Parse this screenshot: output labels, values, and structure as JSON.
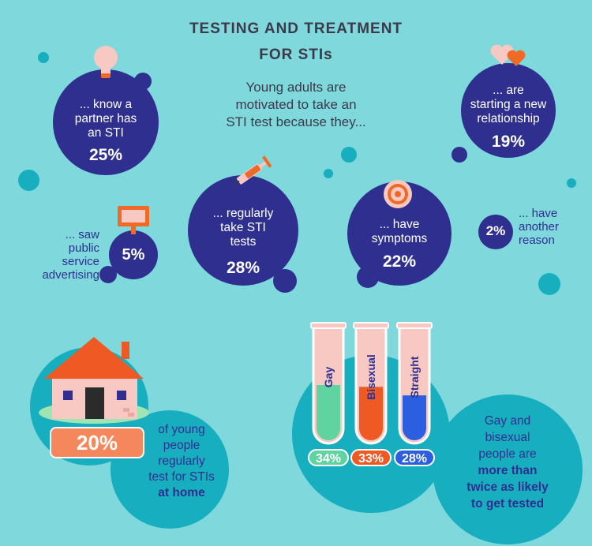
{
  "title": {
    "line1": "TESTING AND TREATMENT",
    "line2": "FOR STIs"
  },
  "intro": {
    "line1": "Young adults are",
    "line2": "motivated to take an",
    "line3": "STI test because they..."
  },
  "reasons": [
    {
      "line1": "... know a",
      "line2": "partner has",
      "line3": "an STI",
      "pct": "25%"
    },
    {
      "line1": "... are",
      "line2": "starting a new",
      "line3": "relationship",
      "pct": "19%"
    },
    {
      "line1": "... regularly",
      "line2": "take STI",
      "line3": "tests",
      "pct": "28%"
    },
    {
      "line1": "... have",
      "line2": "symptoms",
      "pct": "22%"
    },
    {
      "line1": "... saw",
      "line2": "public",
      "line3": "service",
      "line4": "advertising",
      "pct": "5%"
    },
    {
      "line1": "... have",
      "line2": "another",
      "line3": "reason",
      "pct": "2%"
    }
  ],
  "home": {
    "pct": "20%",
    "line1": "of young",
    "line2": "people",
    "line3": "regularly",
    "line4": "test for STIs",
    "line5": "at home"
  },
  "orientation": {
    "tubes": [
      {
        "label": "Gay",
        "pct": "34%",
        "color": "#5fd3a0"
      },
      {
        "label": "Bisexual",
        "pct": "33%",
        "color": "#ef5a24"
      },
      {
        "label": "Straight",
        "pct": "28%",
        "color": "#2c5fe0"
      }
    ],
    "caption": {
      "line1": "Gay and",
      "line2": "bisexual",
      "line3": "people are",
      "line4": "more than",
      "line5": "twice as likely",
      "line6": "to get tested"
    }
  },
  "chart_data": [
    {
      "type": "bar",
      "title": "TESTING AND TREATMENT FOR STIs",
      "categories": [
        "... know a partner has an STI",
        "... are starting a new relationship",
        "... regularly take STI tests",
        "... have symptoms",
        "... saw public service advertising",
        "... have another reason"
      ],
      "values": [
        25,
        19,
        28,
        22,
        5,
        2
      ],
      "unit": "%"
    },
    {
      "type": "bar",
      "categories": [
        "Gay",
        "Bisexual",
        "Straight"
      ],
      "values": [
        34,
        33,
        28
      ],
      "unit": "%",
      "ylim": [
        0,
        100
      ]
    }
  ]
}
